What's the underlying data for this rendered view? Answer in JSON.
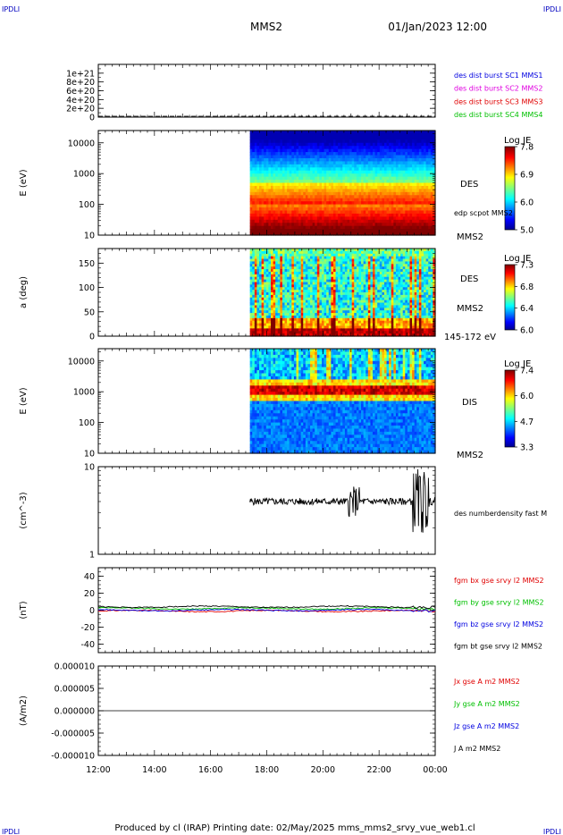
{
  "header": {
    "corner_left": "IPDLI",
    "corner_right": "IPDLI",
    "mission": "MMS2",
    "datetime": "01/Jan/2023 12:00"
  },
  "footer": {
    "text": "Produced by cl (IRAP)   Printing date: 02/May/2025   mms_mms2_srvy_vue_web1.cl",
    "corner_left": "IPDLI",
    "corner_right": "IPDLI"
  },
  "time_axis": {
    "ticks": [
      "12:00",
      "14:00",
      "16:00",
      "18:00",
      "20:00",
      "22:00",
      "00:00"
    ],
    "start_hour": 12,
    "end_hour": 24,
    "data_start_hour": 17.4
  },
  "colors": {
    "red": "#e00000",
    "green": "#00c000",
    "blue": "#0000e0",
    "magenta": "#e000e0",
    "black": "#000000"
  },
  "chart_data": [
    {
      "id": "p1",
      "type": "line",
      "ylim": [
        0,
        1.2e+21
      ],
      "yticks": [
        "0",
        "2e+20",
        "4e+20",
        "6e+20",
        "8e+20",
        "1e+21"
      ],
      "series": [
        {
          "name": "des dist burst SC1 MMS1",
          "color": "#0000e0"
        },
        {
          "name": "des dist burst SC2 MMS2",
          "color": "#e000e0"
        },
        {
          "name": "des dist burst SC3 MMS3",
          "color": "#e00000"
        },
        {
          "name": "des dist burst SC4 MMS4",
          "color": "#00c000"
        }
      ]
    },
    {
      "id": "p2",
      "type": "heatmap",
      "ylabel": "E (eV)",
      "yscale": "log",
      "yticks": [
        "10",
        "100",
        "1000",
        "10000"
      ],
      "species": "DES",
      "spacecraft": "MMS2",
      "overlay_label": "edp scpot MMS2",
      "colorbar": {
        "title": "Log JE",
        "ticks": [
          "7.8",
          "6.9",
          "6.0",
          "5.0"
        ],
        "range": [
          5.0,
          7.8
        ]
      }
    },
    {
      "id": "p3",
      "type": "heatmap",
      "ylabel": "a (deg)",
      "yticks": [
        "0",
        "50",
        "100",
        "150"
      ],
      "species": "DES",
      "spacecraft": "MMS2",
      "energy_range": "145-172 eV",
      "colorbar": {
        "title": "Log JE",
        "ticks": [
          "7.3",
          "6.8",
          "6.4",
          "6.0"
        ],
        "range": [
          6.0,
          7.3
        ]
      }
    },
    {
      "id": "p4",
      "type": "heatmap",
      "ylabel": "E (eV)",
      "yscale": "log",
      "yticks": [
        "10",
        "100",
        "1000",
        "10000"
      ],
      "species": "DIS",
      "spacecraft": "MMS2",
      "colorbar": {
        "title": "Log JE",
        "ticks": [
          "7.4",
          "6.0",
          "4.7",
          "3.3"
        ],
        "range": [
          3.3,
          7.4
        ]
      }
    },
    {
      "id": "p5",
      "type": "line",
      "ylabel": "(cm^-3)",
      "yscale": "log",
      "yticks": [
        "1",
        "10"
      ],
      "series": [
        {
          "name": "des numberdensity fast M",
          "color": "#000000",
          "baseline": 4.0
        }
      ]
    },
    {
      "id": "p6",
      "type": "line",
      "ylabel": "(nT)",
      "ylim": [
        -50,
        50
      ],
      "yticks": [
        "-40",
        "-20",
        "0",
        "20",
        "40"
      ],
      "series": [
        {
          "name": "fgm bx gse srvy l2 MMS2",
          "color": "#e00000",
          "baseline": -1
        },
        {
          "name": "fgm by gse srvy l2 MMS2",
          "color": "#00c000",
          "baseline": 2
        },
        {
          "name": "fgm bz gse srvy l2 MMS2",
          "color": "#0000e0",
          "baseline": 0
        },
        {
          "name": "fgm bt gse srvy l2 MMS2",
          "color": "#000000",
          "baseline": 4
        }
      ]
    },
    {
      "id": "p7",
      "type": "line",
      "ylabel": "(A/m2)",
      "ylim": [
        -1e-05,
        1e-05
      ],
      "yticks": [
        "-0.000010",
        "-0.000005",
        "0.000000",
        "0.000005",
        "0.000010"
      ],
      "series": [
        {
          "name": "Jx gse A m2 MMS2",
          "color": "#e00000"
        },
        {
          "name": "Jy gse A m2 MMS2",
          "color": "#00c000"
        },
        {
          "name": "Jz gse A m2 MMS2",
          "color": "#0000e0"
        },
        {
          "name": "J A m2 MMS2",
          "color": "#000000"
        }
      ]
    }
  ]
}
